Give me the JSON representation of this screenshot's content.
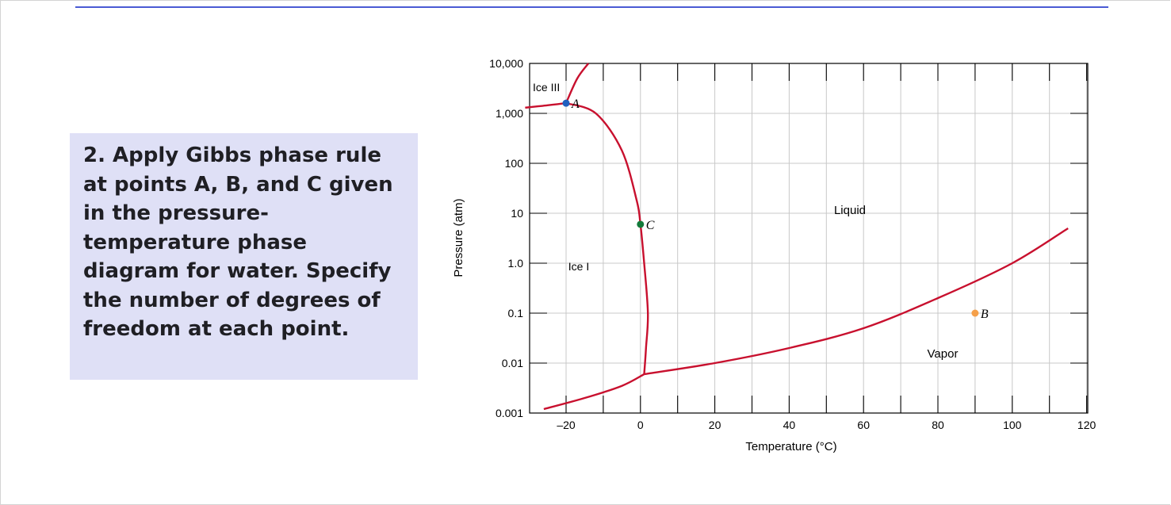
{
  "question": {
    "text": "2. Apply Gibbs phase rule at points A, B, and C given in the pressure-temperature phase diagram for water. Specify the number of degrees of freedom at each point."
  },
  "colors": {
    "accent_rule": "#4a5bd4",
    "question_bg": "#dfe0f6",
    "curve": "#c8102e",
    "point_A": "#1f5fbf",
    "point_B": "#f5a04a",
    "point_C": "#127a3a"
  },
  "chart_data": {
    "type": "phase-diagram",
    "xlabel": "Temperature (°C)",
    "ylabel": "Pressure (atm)",
    "xlim": [
      -30,
      120
    ],
    "ylim_log10": [
      -3,
      4
    ],
    "x_ticks": [
      "–20",
      "0",
      "20",
      "40",
      "60",
      "80",
      "100",
      "120"
    ],
    "y_ticks": [
      "0.001",
      "0.01",
      "0.1",
      "1.0",
      "10",
      "100",
      "1,000",
      "10,000"
    ],
    "regions": [
      "Ice III",
      "Liquid",
      "Ice I",
      "Vapor"
    ],
    "points": [
      {
        "label": "A",
        "x": -20,
        "y": 1600
      },
      {
        "label": "B",
        "x": 90,
        "y": 0.1
      },
      {
        "label": "C",
        "x": 0,
        "y": 6
      }
    ],
    "curves": [
      {
        "name": "",
        "points": [
          [
            -31,
            1300
          ],
          [
            -25,
            1450
          ],
          [
            -20,
            1600
          ]
        ]
      },
      {
        "name": "",
        "points": [
          [
            -20,
            1600
          ],
          [
            -17,
            5000
          ],
          [
            -14,
            10000
          ]
        ]
      },
      {
        "name": "",
        "points": [
          [
            -20,
            1600
          ],
          [
            -12,
            1000
          ],
          [
            -5,
            180
          ],
          [
            -1,
            18
          ],
          [
            0,
            6
          ],
          [
            1,
            1
          ],
          [
            2,
            0.1
          ],
          [
            1.5,
            0.02
          ],
          [
            1,
            0.006
          ]
        ]
      },
      {
        "name": "",
        "points": [
          [
            -26,
            0.0012
          ],
          [
            -15,
            0.002
          ],
          [
            -5,
            0.0035
          ],
          [
            1,
            0.006
          ]
        ]
      },
      {
        "name": "",
        "points": [
          [
            1,
            0.006
          ],
          [
            20,
            0.01
          ],
          [
            40,
            0.02
          ],
          [
            60,
            0.05
          ],
          [
            80,
            0.2
          ],
          [
            100,
            1.0
          ],
          [
            115,
            5
          ]
        ]
      }
    ]
  }
}
